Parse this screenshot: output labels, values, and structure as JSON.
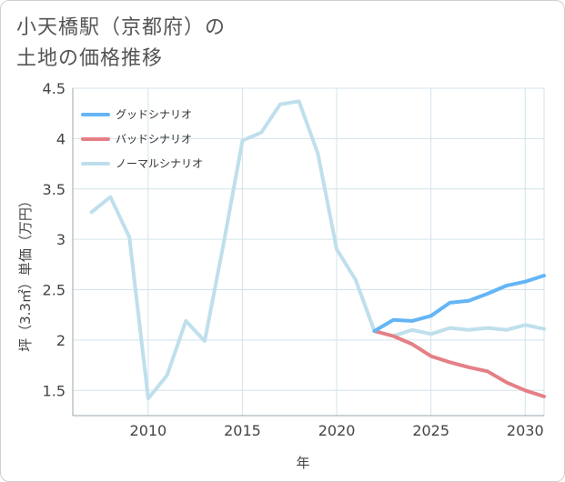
{
  "title_lines": [
    "小天橋駅（京都府）の",
    "土地の価格推移"
  ],
  "colors": {
    "good": "#64b5f6",
    "bad": "#e57f86",
    "normal": "#bfdfec",
    "grid": "#d3e3ec",
    "axis": "#444444"
  },
  "chart_data": {
    "type": "line",
    "xlabel": "年",
    "ylabel": "坪（3.3㎡）単価（万円）",
    "xlim": [
      2006,
      2031
    ],
    "ylim": [
      1.25,
      4.5
    ],
    "x_ticks": [
      2010,
      2015,
      2020,
      2025,
      2030
    ],
    "x_tick_labels": [
      "2010",
      "2015",
      "2020",
      "2025",
      "2030"
    ],
    "y_ticks": [
      1.5,
      2,
      2.5,
      3,
      3.5,
      4,
      4.5
    ],
    "y_tick_labels": [
      "1.5",
      "2",
      "2.5",
      "3",
      "3.5",
      "4",
      "4.5"
    ],
    "grid": true,
    "legend_position": "top-left",
    "series": [
      {
        "name": "グッドシナリオ",
        "color_key": "good",
        "x": [
          2022,
          2023,
          2024,
          2025,
          2026,
          2027,
          2028,
          2029,
          2030,
          2031
        ],
        "y": [
          2.09,
          2.2,
          2.19,
          2.24,
          2.37,
          2.39,
          2.46,
          2.54,
          2.58,
          2.64
        ]
      },
      {
        "name": "バッドシナリオ",
        "color_key": "bad",
        "x": [
          2022,
          2023,
          2024,
          2025,
          2026,
          2027,
          2028,
          2029,
          2030,
          2031
        ],
        "y": [
          2.09,
          2.04,
          1.96,
          1.84,
          1.78,
          1.73,
          1.69,
          1.58,
          1.5,
          1.44
        ]
      },
      {
        "name": "ノーマルシナリオ",
        "color_key": "normal",
        "x": [
          2007,
          2008,
          2009,
          2010,
          2011,
          2012,
          2013,
          2014,
          2015,
          2016,
          2017,
          2018,
          2019,
          2020,
          2021,
          2022,
          2023,
          2024,
          2025,
          2026,
          2027,
          2028,
          2029,
          2030,
          2031
        ],
        "y": [
          3.27,
          3.42,
          3.02,
          1.42,
          1.65,
          2.19,
          1.99,
          2.96,
          3.98,
          4.06,
          4.34,
          4.37,
          3.85,
          2.9,
          2.6,
          2.09,
          2.04,
          2.1,
          2.06,
          2.12,
          2.1,
          2.12,
          2.1,
          2.15,
          2.11
        ]
      }
    ]
  }
}
